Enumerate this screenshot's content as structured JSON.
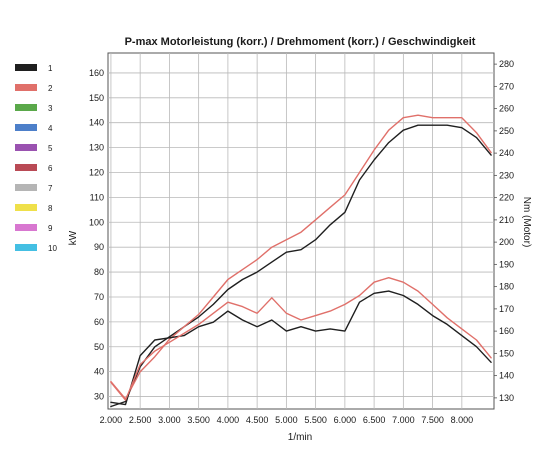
{
  "chart_data": {
    "type": "line",
    "title": "P-max Motorleistung (korr.) / Drehmoment (korr.) / Geschwindigkeit",
    "xlabel": "1/min",
    "ylabel_left": "kW",
    "ylabel_right": "Nm (Motor)",
    "x_tick_labels": [
      "2.000",
      "2.500",
      "3.000",
      "3.500",
      "4.000",
      "4.500",
      "5.000",
      "5.500",
      "6.000",
      "6.500",
      "7.000",
      "7.500",
      "8.000"
    ],
    "xlim": [
      1950,
      8550
    ],
    "ylim_left": [
      25,
      168
    ],
    "ylim_right": [
      125,
      285
    ],
    "y_left_ticks": [
      30,
      40,
      50,
      60,
      70,
      80,
      90,
      100,
      110,
      120,
      130,
      140,
      150,
      160
    ],
    "y_right_ticks": [
      130,
      140,
      150,
      160,
      170,
      180,
      190,
      200,
      210,
      220,
      230,
      240,
      250,
      260,
      270,
      280
    ],
    "grid": true,
    "legend": {
      "placement": "left",
      "entries": [
        {
          "label": "1",
          "color": "#1f1f1f"
        },
        {
          "label": "2",
          "color": "#e0706a"
        },
        {
          "label": "3",
          "color": "#5aa84a"
        },
        {
          "label": "4",
          "color": "#4d7fc9"
        },
        {
          "label": "5",
          "color": "#9a52b0"
        },
        {
          "label": "6",
          "color": "#b94a55"
        },
        {
          "label": "7",
          "color": "#b5b5b5"
        },
        {
          "label": "8",
          "color": "#efe04a"
        },
        {
          "label": "9",
          "color": "#d877d0"
        },
        {
          "label": "10",
          "color": "#44bfe3"
        }
      ]
    },
    "series": [
      {
        "name": "1",
        "role": "power",
        "axis": "left",
        "color": "#1f1f1f",
        "x": [
          2000,
          2250,
          2500,
          2750,
          3000,
          3250,
          3500,
          3750,
          4000,
          4250,
          4500,
          4750,
          5000,
          5250,
          5500,
          5750,
          6000,
          6250,
          6500,
          6750,
          7000,
          7250,
          7500,
          7750,
          8000,
          8250,
          8500
        ],
        "y": [
          26,
          28,
          42,
          50,
          54,
          58,
          62,
          67,
          73,
          77,
          80,
          84,
          88,
          89,
          93,
          99,
          104,
          117,
          125,
          132,
          137,
          139,
          139,
          139,
          138,
          134,
          127
        ]
      },
      {
        "name": "2",
        "role": "power",
        "axis": "left",
        "color": "#e0706a",
        "x": [
          2000,
          2250,
          2500,
          2750,
          3000,
          3250,
          3500,
          3750,
          4000,
          4250,
          4500,
          4750,
          5000,
          5250,
          5500,
          5750,
          6000,
          6250,
          6500,
          6750,
          7000,
          7250,
          7500,
          7750,
          8000,
          8250,
          8500
        ],
        "y": [
          36,
          29,
          40,
          46,
          53,
          58,
          63,
          70,
          77,
          81,
          85,
          90,
          93,
          96,
          101,
          106,
          111,
          120,
          129,
          137,
          142,
          143,
          142,
          142,
          142,
          136,
          128
        ]
      },
      {
        "name": "1",
        "role": "torque",
        "axis": "right",
        "color": "#1f1f1f",
        "x": [
          2000,
          2250,
          2500,
          2750,
          3000,
          3250,
          3500,
          3750,
          4000,
          4250,
          4500,
          4750,
          5000,
          5250,
          5500,
          5750,
          6000,
          6250,
          6500,
          6750,
          7000,
          7250,
          7500,
          7750,
          8000,
          8250,
          8500
        ],
        "y": [
          128,
          127,
          149,
          156,
          157,
          158,
          162,
          164,
          169,
          165,
          162,
          165,
          160,
          162,
          160,
          161,
          160,
          173,
          177,
          178,
          176,
          172,
          167,
          163,
          158,
          153,
          146
        ]
      },
      {
        "name": "2",
        "role": "torque",
        "axis": "right",
        "color": "#e0706a",
        "x": [
          2000,
          2250,
          2500,
          2750,
          3000,
          3250,
          3500,
          3750,
          4000,
          4250,
          4500,
          4750,
          5000,
          5250,
          5500,
          5750,
          6000,
          6250,
          6500,
          6750,
          7000,
          7250,
          7500,
          7750,
          8000,
          8250,
          8500
        ],
        "y": [
          137,
          129,
          145,
          151,
          155,
          159,
          163,
          168,
          173,
          171,
          168,
          175,
          168,
          165,
          167,
          169,
          172,
          176,
          182,
          184,
          182,
          178,
          172,
          166,
          161,
          156,
          148
        ]
      }
    ]
  }
}
